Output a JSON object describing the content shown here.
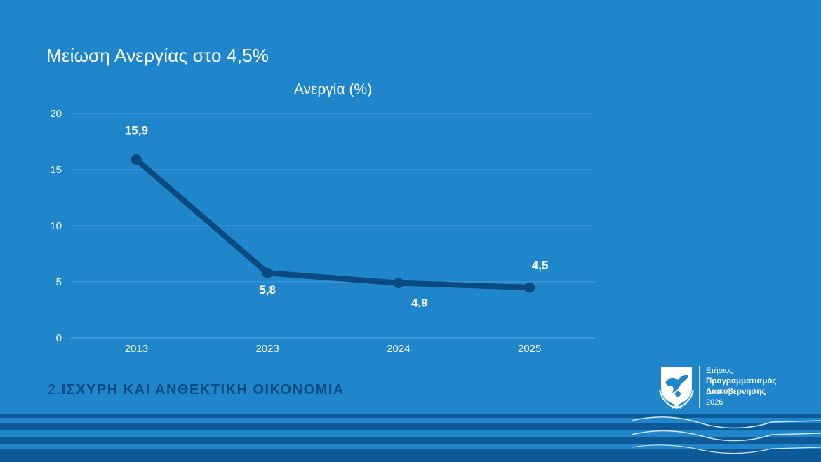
{
  "slide": {
    "title": "Μείωση Ανεργίας στο 4,5%",
    "section_number": "2.",
    "section_title": "ΙΣΧΥΡΗ ΚΑΙ ΑΝΘΕΚΤΙΚΗ ΟΙΚΟΝΟΜΙΑ"
  },
  "logo": {
    "line1": "Ετήσιος",
    "line2": "Προγραμματισμός",
    "line3": "Διακυβέρνησης",
    "line4": "2026",
    "icon": "cyprus-eagle-emblem-icon"
  },
  "colors": {
    "background": "#1f86cb",
    "line": "#0b4a80",
    "text": "#ffffff",
    "section_text": "#0b4a80"
  },
  "chart_data": {
    "type": "line",
    "title": "Ανεργία (%)",
    "categories": [
      "2013",
      "2023",
      "2024",
      "2025"
    ],
    "series": [
      {
        "values": [
          15.9,
          5.8,
          4.9,
          4.5
        ]
      }
    ],
    "data_labels": [
      "15,9",
      "5,8",
      "4,9",
      "4,5"
    ],
    "y_ticks": [
      "0",
      "5",
      "10",
      "15",
      "20"
    ],
    "ylim": [
      0,
      20
    ],
    "grid": true,
    "legend": "none"
  }
}
